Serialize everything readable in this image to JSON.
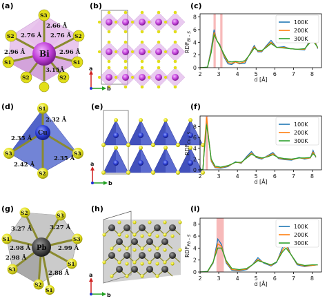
{
  "panel_labels": {
    "a": "(a)",
    "b": "(b)",
    "c": "(c)",
    "d": "(d)",
    "e": "(e)",
    "f": "(f)",
    "g": "(g)",
    "h": "(h)",
    "i": "(i)"
  },
  "struct_a": {
    "center": "Bi",
    "atoms": [
      "S3",
      "S2",
      "S2",
      "S1",
      "S1",
      "S2",
      "S2",
      "S3"
    ],
    "bonds": [
      "2.66 Å",
      "2.76 Å",
      "2.76 Å",
      "2.96 Å",
      "2.96 Å",
      "3.15Å"
    ]
  },
  "struct_d": {
    "center": "Cu",
    "atoms": [
      "S1",
      "S3",
      "S3",
      "S2"
    ],
    "bonds": [
      "2.32 Å",
      "2.35 Å",
      "2.35 Å",
      "2.42 Å"
    ]
  },
  "struct_g": {
    "center": "Pb",
    "atoms": [
      "S2",
      "S3",
      "S3",
      "S1",
      "S1",
      "S2",
      "S3",
      "S1",
      "S1"
    ],
    "bonds": [
      "3.27 Å",
      "3.27 Å",
      "2.98 Å",
      "2.99 Å",
      "2.98 Å",
      "2.88 Å"
    ]
  },
  "axes_tri": {
    "a": "a",
    "b": "b"
  },
  "colors": {
    "Bi": "#b03ac4",
    "Cu": "#2a35c8",
    "Pb": "#4a4a4a",
    "S": "#e2df1a",
    "100K": "#1f77b4",
    "200K": "#ff7f0e",
    "300K": "#2ca02c",
    "highlight": "#f08080"
  },
  "chart_data": [
    {
      "type": "line",
      "panel": "(c)",
      "ylabel": "RDF",
      "ylabel_sub": "Bi - S",
      "xlabel": "d [Å]",
      "xlim": [
        2,
        8.5
      ],
      "ylim": [
        0,
        8.5
      ],
      "xticks": [
        2,
        3,
        4,
        5,
        6,
        7,
        8
      ],
      "yticks": [
        0,
        2,
        4,
        6,
        8
      ],
      "highlights": [
        [
          2.72,
          2.84
        ],
        [
          3.08,
          3.2
        ]
      ],
      "series": [
        {
          "name": "100K",
          "values": [
            [
              2,
              0
            ],
            [
              2.4,
              0.05
            ],
            [
              2.6,
              3
            ],
            [
              2.75,
              6
            ],
            [
              2.9,
              4.2
            ],
            [
              3.05,
              3.7
            ],
            [
              3.3,
              1.6
            ],
            [
              3.5,
              0.6
            ],
            [
              3.7,
              0.5
            ],
            [
              3.9,
              0.9
            ],
            [
              4.1,
              0.6
            ],
            [
              4.4,
              0.7
            ],
            [
              4.7,
              2.4
            ],
            [
              4.9,
              3.5
            ],
            [
              5.1,
              2.5
            ],
            [
              5.3,
              2.5
            ],
            [
              5.5,
              3.3
            ],
            [
              5.8,
              4.3
            ],
            [
              6.1,
              3.2
            ],
            [
              6.5,
              3.3
            ],
            [
              6.8,
              3
            ],
            [
              7.2,
              2.9
            ],
            [
              7.6,
              2.8
            ],
            [
              7.9,
              4.5
            ],
            [
              8.1,
              4.6
            ],
            [
              8.3,
              3
            ]
          ]
        },
        {
          "name": "200K",
          "values": [
            [
              2,
              0
            ],
            [
              2.4,
              0.05
            ],
            [
              2.6,
              2.7
            ],
            [
              2.75,
              5.6
            ],
            [
              2.9,
              4.3
            ],
            [
              3.05,
              3.6
            ],
            [
              3.3,
              1.8
            ],
            [
              3.5,
              0.8
            ],
            [
              3.7,
              0.7
            ],
            [
              3.9,
              0.9
            ],
            [
              4.1,
              0.7
            ],
            [
              4.4,
              0.9
            ],
            [
              4.7,
              2.3
            ],
            [
              4.9,
              3.3
            ],
            [
              5.1,
              2.6
            ],
            [
              5.3,
              2.6
            ],
            [
              5.5,
              3.2
            ],
            [
              5.8,
              4
            ],
            [
              6.1,
              3.2
            ],
            [
              6.5,
              3.2
            ],
            [
              6.8,
              3
            ],
            [
              7.2,
              2.9
            ],
            [
              7.6,
              2.9
            ],
            [
              7.9,
              4.2
            ],
            [
              8.1,
              4.3
            ],
            [
              8.3,
              3.1
            ]
          ]
        },
        {
          "name": "300K",
          "values": [
            [
              2,
              0
            ],
            [
              2.4,
              0.1
            ],
            [
              2.6,
              2.4
            ],
            [
              2.75,
              5.2
            ],
            [
              2.9,
              4.3
            ],
            [
              3.05,
              3.5
            ],
            [
              3.3,
              2
            ],
            [
              3.5,
              1
            ],
            [
              3.7,
              0.9
            ],
            [
              3.9,
              1
            ],
            [
              4.1,
              0.9
            ],
            [
              4.4,
              1.1
            ],
            [
              4.7,
              2.2
            ],
            [
              4.9,
              3.1
            ],
            [
              5.1,
              2.7
            ],
            [
              5.3,
              2.7
            ],
            [
              5.5,
              3.1
            ],
            [
              5.8,
              3.8
            ],
            [
              6.1,
              3.2
            ],
            [
              6.5,
              3.1
            ],
            [
              6.8,
              3
            ],
            [
              7.2,
              2.9
            ],
            [
              7.6,
              3
            ],
            [
              7.9,
              4
            ],
            [
              8.1,
              4
            ],
            [
              8.3,
              3.2
            ]
          ]
        }
      ]
    },
    {
      "type": "line",
      "panel": "(f)",
      "ylabel": "RDF",
      "ylabel_sub": "Cu - S",
      "xlabel": "d [Å]",
      "xlim": [
        2,
        8.5
      ],
      "ylim": [
        0,
        10
      ],
      "xticks": [
        2,
        3,
        4,
        5,
        6,
        7,
        8
      ],
      "yticks": [
        0,
        2,
        4,
        6,
        8
      ],
      "highlights": [
        [
          2.3,
          2.42
        ]
      ],
      "series": [
        {
          "name": "100K",
          "values": [
            [
              2,
              0
            ],
            [
              2.15,
              0.05
            ],
            [
              2.25,
              5
            ],
            [
              2.35,
              9.2
            ],
            [
              2.45,
              6
            ],
            [
              2.6,
              1.6
            ],
            [
              2.8,
              0.4
            ],
            [
              3.1,
              0.3
            ],
            [
              3.5,
              0.6
            ],
            [
              3.9,
              1.5
            ],
            [
              4.2,
              1.2
            ],
            [
              4.5,
              2.5
            ],
            [
              4.75,
              3.4
            ],
            [
              5,
              2.3
            ],
            [
              5.3,
              2
            ],
            [
              5.6,
              2.6
            ],
            [
              5.9,
              3.2
            ],
            [
              6.2,
              2.1
            ],
            [
              6.5,
              1.9
            ],
            [
              6.9,
              1.8
            ],
            [
              7.3,
              2.3
            ],
            [
              7.6,
              2
            ],
            [
              7.9,
              2.2
            ],
            [
              8.05,
              3.6
            ],
            [
              8.2,
              2.3
            ]
          ]
        },
        {
          "name": "200K",
          "values": [
            [
              2,
              0
            ],
            [
              2.15,
              0.05
            ],
            [
              2.25,
              5.5
            ],
            [
              2.35,
              9.8
            ],
            [
              2.45,
              6.2
            ],
            [
              2.6,
              1.7
            ],
            [
              2.8,
              0.5
            ],
            [
              3.1,
              0.4
            ],
            [
              3.5,
              0.7
            ],
            [
              3.9,
              1.4
            ],
            [
              4.2,
              1.3
            ],
            [
              4.5,
              2.3
            ],
            [
              4.75,
              3.1
            ],
            [
              5,
              2.4
            ],
            [
              5.3,
              2.1
            ],
            [
              5.6,
              2.5
            ],
            [
              5.9,
              3
            ],
            [
              6.2,
              2.2
            ],
            [
              6.5,
              2
            ],
            [
              6.9,
              1.9
            ],
            [
              7.3,
              2.2
            ],
            [
              7.6,
              2.1
            ],
            [
              7.9,
              2.2
            ],
            [
              8.05,
              3.3
            ],
            [
              8.2,
              2.4
            ]
          ]
        },
        {
          "name": "300K",
          "values": [
            [
              2,
              0
            ],
            [
              2.15,
              0.1
            ],
            [
              2.25,
              4.6
            ],
            [
              2.35,
              8.4
            ],
            [
              2.45,
              6
            ],
            [
              2.6,
              2
            ],
            [
              2.8,
              0.7
            ],
            [
              3.1,
              0.5
            ],
            [
              3.5,
              0.8
            ],
            [
              3.9,
              1.4
            ],
            [
              4.2,
              1.4
            ],
            [
              4.5,
              2.2
            ],
            [
              4.75,
              2.9
            ],
            [
              5,
              2.5
            ],
            [
              5.3,
              2.2
            ],
            [
              5.6,
              2.4
            ],
            [
              5.9,
              2.8
            ],
            [
              6.2,
              2.3
            ],
            [
              6.5,
              2.1
            ],
            [
              6.9,
              2
            ],
            [
              7.3,
              2.2
            ],
            [
              7.6,
              2.2
            ],
            [
              7.9,
              2.3
            ],
            [
              8.05,
              3
            ],
            [
              8.2,
              2.5
            ]
          ]
        }
      ]
    },
    {
      "type": "line",
      "panel": "(i)",
      "ylabel": "RDF",
      "ylabel_sub": "Pb - S",
      "xlabel": "d [Å]",
      "xlim": [
        2,
        8.5
      ],
      "ylim": [
        0,
        9
      ],
      "xticks": [
        2,
        3,
        4,
        5,
        6,
        7,
        8
      ],
      "yticks": [
        0,
        2,
        4,
        6,
        8
      ],
      "highlights": [
        [
          2.88,
          3.27
        ]
      ],
      "series": [
        {
          "name": "100K",
          "values": [
            [
              2,
              0
            ],
            [
              2.4,
              0.05
            ],
            [
              2.7,
              1.5
            ],
            [
              2.95,
              5.5
            ],
            [
              3.15,
              4.6
            ],
            [
              3.4,
              1.5
            ],
            [
              3.7,
              0.3
            ],
            [
              4.1,
              0.2
            ],
            [
              4.5,
              0.4
            ],
            [
              4.8,
              1.2
            ],
            [
              5.1,
              2.4
            ],
            [
              5.4,
              1.5
            ],
            [
              5.8,
              1
            ],
            [
              6.1,
              1.6
            ],
            [
              6.4,
              4
            ],
            [
              6.6,
              5
            ],
            [
              6.85,
              3
            ],
            [
              7.2,
              1.2
            ],
            [
              7.6,
              0.9
            ],
            [
              8,
              1.1
            ],
            [
              8.3,
              1.2
            ]
          ]
        },
        {
          "name": "200K",
          "values": [
            [
              2,
              0
            ],
            [
              2.4,
              0.05
            ],
            [
              2.7,
              1.6
            ],
            [
              2.95,
              4.7
            ],
            [
              3.15,
              4.3
            ],
            [
              3.4,
              1.7
            ],
            [
              3.7,
              0.4
            ],
            [
              4.1,
              0.3
            ],
            [
              4.5,
              0.5
            ],
            [
              4.8,
              1.2
            ],
            [
              5.1,
              2.1
            ],
            [
              5.4,
              1.6
            ],
            [
              5.8,
              1.1
            ],
            [
              6.1,
              1.7
            ],
            [
              6.4,
              3.6
            ],
            [
              6.6,
              4.5
            ],
            [
              6.85,
              3
            ],
            [
              7.2,
              1.3
            ],
            [
              7.6,
              1
            ],
            [
              8,
              1.1
            ],
            [
              8.3,
              1.2
            ]
          ]
        },
        {
          "name": "300K",
          "values": [
            [
              2,
              0
            ],
            [
              2.4,
              0.1
            ],
            [
              2.7,
              1.7
            ],
            [
              2.95,
              4
            ],
            [
              3.15,
              4
            ],
            [
              3.4,
              1.9
            ],
            [
              3.7,
              0.6
            ],
            [
              4.1,
              0.4
            ],
            [
              4.5,
              0.6
            ],
            [
              4.8,
              1.2
            ],
            [
              5.1,
              1.9
            ],
            [
              5.4,
              1.6
            ],
            [
              5.8,
              1.2
            ],
            [
              6.1,
              1.7
            ],
            [
              6.4,
              3.3
            ],
            [
              6.6,
              4
            ],
            [
              6.85,
              3
            ],
            [
              7.2,
              1.4
            ],
            [
              7.6,
              1.1
            ],
            [
              8,
              1.2
            ],
            [
              8.3,
              1.2
            ]
          ]
        }
      ]
    }
  ]
}
